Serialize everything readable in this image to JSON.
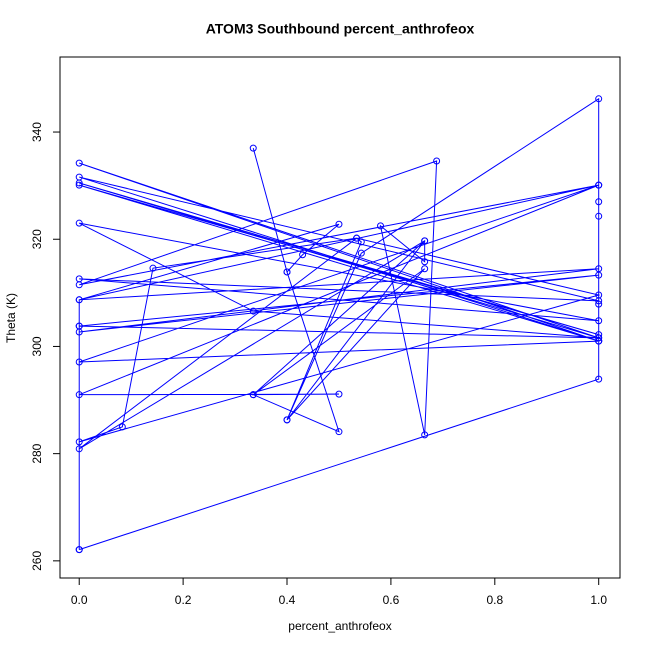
{
  "chart_data": {
    "type": "line",
    "title": "ATOM3 Southbound percent_anthrofeox",
    "x_label": "percent_anthrofeox",
    "y_label": "Theta (K)",
    "xlim": [
      -0.037,
      1.041
    ],
    "ylim": [
      256.8,
      354.0
    ],
    "xticks": [
      {
        "value": 0,
        "label": "0.0"
      },
      0.2,
      0.4,
      0.6,
      0.8,
      {
        "value": 1,
        "label": "1.0"
      }
    ],
    "yticks": [
      260,
      280,
      300,
      320,
      340
    ],
    "series": [
      {
        "name": "Theta",
        "color": "#0000ff",
        "x": [
          0,
          1,
          1,
          0,
          1,
          0,
          1,
          0,
          1,
          0,
          1,
          0,
          1,
          0,
          0.335,
          1,
          0,
          1,
          0,
          1,
          0,
          0.5,
          0.43,
          0.4,
          0.335,
          0.4,
          0.5,
          0.335,
          0.665,
          0.665,
          0.58,
          0.665,
          0.688,
          0,
          1,
          0,
          0.5,
          0.335,
          0.665,
          0.4,
          0.543,
          0.534,
          1,
          0,
          0.083,
          0.142,
          0.534,
          0,
          0.665,
          0.4,
          0.543,
          1,
          1,
          1,
          1,
          1,
          0,
          1,
          0,
          0,
          0
        ],
        "values": [
          262.1,
          293.9,
          301.0,
          334.2,
          301.6,
          330.5,
          302.2,
          330.1,
          301.0,
          331.6,
          308.5,
          312.6,
          304.8,
          323.0,
          306.6,
          301.6,
          303.8,
          313.3,
          302.7,
          314.5,
          308.7,
          322.8,
          317.1,
          313.9,
          337.0,
          313.9,
          284.1,
          291.0,
          319.7,
          315.8,
          322.5,
          283.5,
          334.6,
          311.5,
          330.1,
          291.0,
          291.1,
          291.0,
          314.5,
          286.3,
          319.5,
          320.2,
          309.6,
          282.2,
          285.0,
          314.6,
          320.2,
          280.9,
          319.7,
          286.3,
          317.4,
          346.2,
          327.0,
          324.3,
          307.9,
          301.0,
          297.1,
          330.1,
          308.7,
          303.8,
          262.1
        ]
      }
    ]
  }
}
